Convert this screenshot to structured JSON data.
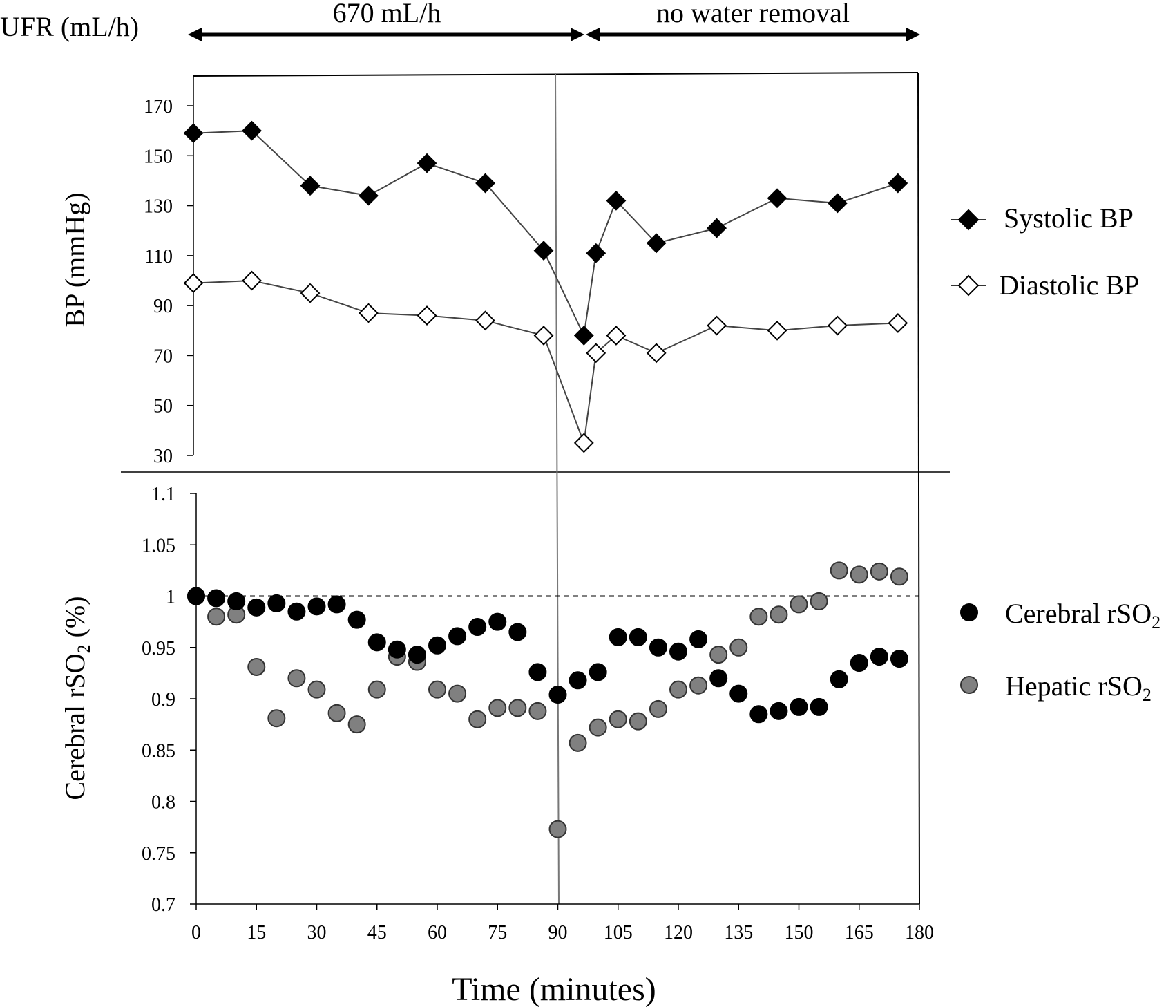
{
  "ufr": {
    "label": "UFR (mL/h)",
    "segment1": "670 mL/h",
    "segment2": "no water removal"
  },
  "chart_data": [
    {
      "type": "line",
      "ylabel": "BP (mmHg)",
      "xlim": [
        0,
        180
      ],
      "ylim": [
        30,
        170
      ],
      "yticks": [
        30,
        50,
        70,
        90,
        110,
        130,
        150,
        170
      ],
      "series": [
        {
          "name": "Systolic BP",
          "marker": "filled-diamond",
          "color": "#000000",
          "x": [
            0,
            14.5,
            29,
            43.5,
            58,
            72.5,
            87,
            97,
            100,
            105,
            115,
            130,
            145,
            160,
            175
          ],
          "y": [
            159,
            160,
            138,
            134,
            147,
            139,
            112,
            78,
            111,
            132,
            115,
            121,
            133,
            131,
            139
          ]
        },
        {
          "name": "Diastolic BP",
          "marker": "open-diamond",
          "color": "#ffffff",
          "x": [
            0,
            14.5,
            29,
            43.5,
            58,
            72.5,
            87,
            97,
            100,
            105,
            115,
            130,
            145,
            160,
            175
          ],
          "y": [
            99,
            100,
            95,
            87,
            86,
            84,
            78,
            35,
            71,
            78,
            71,
            82,
            80,
            82,
            83
          ]
        }
      ]
    },
    {
      "type": "scatter",
      "ylabel": "Cerebral rSO2 (%)",
      "xlabel": "Time (minutes)",
      "xlim": [
        0,
        180
      ],
      "ylim": [
        0.7,
        1.1
      ],
      "xticks": [
        0,
        15,
        30,
        45,
        60,
        75,
        90,
        105,
        120,
        135,
        150,
        165,
        180
      ],
      "yticks": [
        "0.7",
        "0.75",
        "0.8",
        "0.85",
        "0.9",
        "0.95",
        "1",
        "1.05",
        "1.1"
      ],
      "reference_line": 1.0,
      "series": [
        {
          "name": "Cerebral rSO2",
          "color": "#000000",
          "x": [
            0,
            5,
            10,
            15,
            20,
            25,
            30,
            35,
            40,
            45,
            50,
            55,
            60,
            65,
            70,
            75,
            80,
            85,
            90,
            95,
            100,
            105,
            110,
            115,
            120,
            125,
            130,
            135,
            140,
            145,
            150,
            155,
            160,
            165,
            170,
            175
          ],
          "y": [
            1.0,
            0.998,
            0.995,
            0.989,
            0.993,
            0.985,
            0.99,
            0.992,
            0.977,
            0.955,
            0.948,
            0.943,
            0.952,
            0.961,
            0.97,
            0.975,
            0.965,
            0.926,
            0.904,
            0.918,
            0.926,
            0.96,
            0.96,
            0.95,
            0.946,
            0.958,
            0.92,
            0.905,
            0.885,
            0.888,
            0.892,
            0.892,
            0.919,
            0.935,
            0.941,
            0.939
          ]
        },
        {
          "name": "Hepatic rSO2",
          "color": "#808080",
          "x": [
            0,
            5,
            10,
            15,
            20,
            25,
            30,
            35,
            40,
            45,
            50,
            55,
            60,
            65,
            70,
            75,
            80,
            85,
            90,
            95,
            100,
            105,
            110,
            115,
            120,
            125,
            130,
            135,
            140,
            145,
            150,
            155,
            160,
            165,
            170,
            175
          ],
          "y": [
            1.0,
            0.98,
            0.982,
            0.931,
            0.881,
            0.92,
            0.909,
            0.886,
            0.875,
            0.909,
            0.941,
            0.936,
            0.909,
            0.905,
            0.88,
            0.891,
            0.891,
            0.888,
            0.773,
            0.857,
            0.872,
            0.88,
            0.878,
            0.89,
            0.909,
            0.913,
            0.943,
            0.95,
            0.98,
            0.982,
            0.992,
            0.995,
            1.025,
            1.021,
            1.024,
            1.019
          ]
        }
      ]
    }
  ]
}
